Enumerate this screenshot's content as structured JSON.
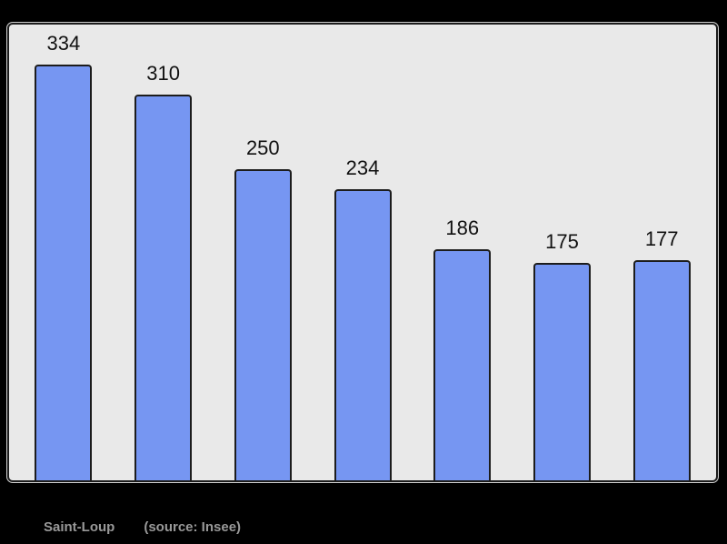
{
  "page": {
    "background": "#000000"
  },
  "chart": {
    "panel_bg": "#e9e9e9",
    "panel_border": "#1c1c1c",
    "bar_fill": "#7696f2",
    "bar_border": "#1c1c1c",
    "label_color": "#111111",
    "caption_color": "#999999"
  },
  "chart_data": {
    "type": "bar",
    "values": [
      334,
      310,
      250,
      234,
      186,
      175,
      177
    ],
    "data_labels": [
      "334",
      "310",
      "250",
      "234",
      "186",
      "175",
      "177"
    ],
    "title": "",
    "xlabel": "",
    "ylabel": "",
    "ylim": [
      0,
      334
    ],
    "baseline": 0,
    "grid": false,
    "legend": false,
    "x_tick_labels": []
  },
  "caption": {
    "title": "Saint-Loup",
    "source": "(source: Insee)"
  }
}
